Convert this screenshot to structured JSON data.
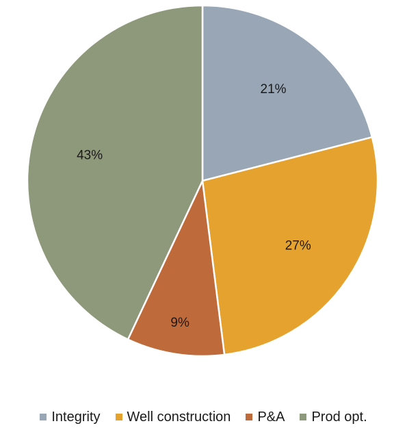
{
  "chart_data": {
    "type": "pie",
    "slices": [
      {
        "name": "Integrity",
        "value": 21,
        "label": "21%",
        "color": "#98a6b6"
      },
      {
        "name": "Well construction",
        "value": 27,
        "label": "27%",
        "color": "#e6a22f"
      },
      {
        "name": "P&A",
        "value": 9,
        "label": "9%",
        "color": "#bf6a3b"
      },
      {
        "name": "Prod opt.",
        "value": 43,
        "label": "43%",
        "color": "#8e987a"
      }
    ],
    "legend_position": "bottom",
    "start_angle": "top (12 o'clock), clockwise"
  }
}
